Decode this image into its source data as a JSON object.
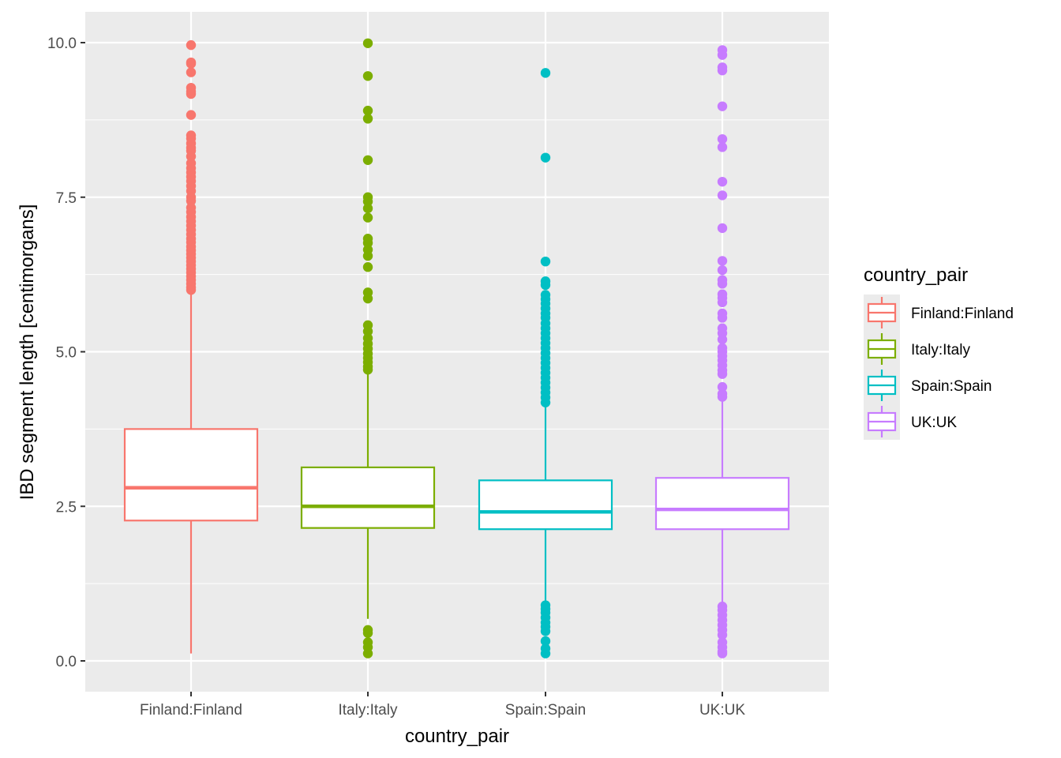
{
  "chart_data": {
    "type": "boxplot",
    "title": "",
    "xlabel": "country_pair",
    "ylabel": "IBD segment length [centimorgans]",
    "ylim": [
      -0.2,
      10.5
    ],
    "yticks": [
      0.0,
      2.5,
      5.0,
      7.5,
      10.0
    ],
    "ytick_labels": [
      "0.0",
      "2.5",
      "5.0",
      "7.5",
      "10.0"
    ],
    "grid": true,
    "legend": {
      "title": "country_pair",
      "position": "right",
      "entries": [
        "Finland:Finland",
        "Italy:Italy",
        "Spain:Spain",
        "UK:UK"
      ]
    },
    "categories": [
      "Finland:Finland",
      "Italy:Italy",
      "Spain:Spain",
      "UK:UK"
    ],
    "series": [
      {
        "name": "Finland:Finland",
        "color": "#F8766D",
        "whisker_low": 0.12,
        "q1": 2.27,
        "median": 2.8,
        "q3": 3.75,
        "whisker_high": 5.96,
        "outliers": [
          9.96,
          9.68,
          9.66,
          9.52,
          9.27,
          9.21,
          9.17,
          8.83,
          8.5,
          8.45,
          8.37,
          8.3,
          8.25,
          8.16,
          8.05,
          7.97,
          7.9,
          7.83,
          7.76,
          7.68,
          7.6,
          7.5,
          7.44,
          7.33,
          7.26,
          7.18,
          7.11,
          7.04,
          6.97,
          6.9,
          6.83,
          6.77,
          6.7,
          6.64,
          6.58,
          6.52,
          6.46,
          6.4,
          6.34,
          6.28,
          6.22,
          6.16,
          6.1,
          6.04,
          6.0
        ]
      },
      {
        "name": "Italy:Italy",
        "color": "#7CAE00",
        "whisker_low": 0.68,
        "q1": 2.15,
        "median": 2.5,
        "q3": 3.13,
        "whisker_high": 4.68,
        "outliers": [
          9.99,
          9.46,
          8.9,
          8.77,
          8.1,
          7.5,
          7.43,
          7.32,
          7.17,
          6.83,
          6.76,
          6.65,
          6.55,
          6.37,
          5.96,
          5.86,
          5.43,
          5.33,
          5.22,
          5.13,
          5.05,
          4.97,
          4.9,
          4.83,
          4.76,
          4.71,
          0.5,
          0.45,
          0.3,
          0.22,
          0.12
        ]
      },
      {
        "name": "Spain:Spain",
        "color": "#00BFC4",
        "whisker_low": 0.96,
        "q1": 2.13,
        "median": 2.41,
        "q3": 2.92,
        "whisker_high": 4.14,
        "outliers": [
          9.51,
          8.14,
          6.46,
          6.14,
          6.08,
          5.92,
          5.85,
          5.78,
          5.7,
          5.62,
          5.55,
          5.46,
          5.38,
          5.3,
          5.22,
          5.14,
          5.06,
          4.98,
          4.9,
          4.82,
          4.74,
          4.66,
          4.58,
          4.5,
          4.42,
          4.34,
          4.26,
          4.18,
          0.9,
          0.84,
          0.78,
          0.7,
          0.62,
          0.55,
          0.48,
          0.32,
          0.2,
          0.12
        ]
      },
      {
        "name": "UK:UK",
        "color": "#C77CFF",
        "whisker_low": 0.93,
        "q1": 2.13,
        "median": 2.45,
        "q3": 2.96,
        "whisker_high": 4.25,
        "outliers": [
          9.88,
          9.8,
          9.6,
          9.55,
          8.97,
          8.44,
          8.31,
          7.75,
          7.53,
          7.0,
          6.47,
          6.32,
          6.16,
          6.1,
          5.93,
          5.87,
          5.8,
          5.62,
          5.55,
          5.38,
          5.3,
          5.2,
          5.06,
          5.0,
          4.93,
          4.86,
          4.78,
          4.7,
          4.64,
          4.43,
          4.32,
          4.27,
          0.88,
          0.82,
          0.74,
          0.66,
          0.58,
          0.5,
          0.42,
          0.3,
          0.22,
          0.15,
          0.12
        ]
      }
    ]
  }
}
